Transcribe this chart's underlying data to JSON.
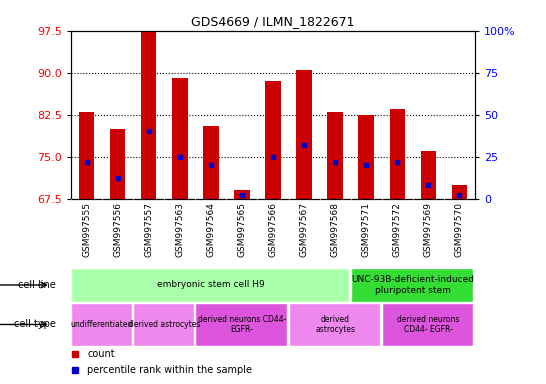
{
  "title": "GDS4669 / ILMN_1822671",
  "samples": [
    "GSM997555",
    "GSM997556",
    "GSM997557",
    "GSM997563",
    "GSM997564",
    "GSM997565",
    "GSM997566",
    "GSM997567",
    "GSM997568",
    "GSM997571",
    "GSM997572",
    "GSM997569",
    "GSM997570"
  ],
  "count_values": [
    83.0,
    80.0,
    97.5,
    89.0,
    80.5,
    69.0,
    88.5,
    90.5,
    83.0,
    82.5,
    83.5,
    76.0,
    70.0
  ],
  "percentile_values": [
    22,
    12,
    40,
    25,
    20,
    2,
    25,
    32,
    22,
    20,
    22,
    8,
    2
  ],
  "ylim_left": [
    67.5,
    97.5
  ],
  "ylim_right": [
    0,
    100
  ],
  "yticks_left": [
    67.5,
    75.0,
    82.5,
    90.0,
    97.5
  ],
  "yticks_right": [
    0,
    25,
    50,
    75,
    100
  ],
  "bar_color": "#cc0000",
  "dot_color": "#0000cc",
  "bar_bottom": 67.5,
  "cell_line_groups": [
    {
      "label": "embryonic stem cell H9",
      "start": 0,
      "end": 9,
      "color": "#aaffaa"
    },
    {
      "label": "UNC-93B-deficient-induced\npluripotent stem",
      "start": 9,
      "end": 13,
      "color": "#33dd33"
    }
  ],
  "cell_type_groups": [
    {
      "label": "undifferentiated",
      "start": 0,
      "end": 2,
      "color": "#ee88ee"
    },
    {
      "label": "derived astrocytes",
      "start": 2,
      "end": 4,
      "color": "#ee88ee"
    },
    {
      "label": "derived neurons CD44-\nEGFR-",
      "start": 4,
      "end": 7,
      "color": "#dd55dd"
    },
    {
      "label": "derived\nastrocytes",
      "start": 7,
      "end": 10,
      "color": "#ee88ee"
    },
    {
      "label": "derived neurons\nCD44- EGFR-",
      "start": 10,
      "end": 13,
      "color": "#dd55dd"
    }
  ],
  "grid_yticks": [
    75.0,
    82.5,
    90.0
  ],
  "legend_count_color": "#cc0000",
  "legend_pct_color": "#0000cc",
  "bg_color": "#ffffff",
  "tick_bg_color": "#cccccc"
}
